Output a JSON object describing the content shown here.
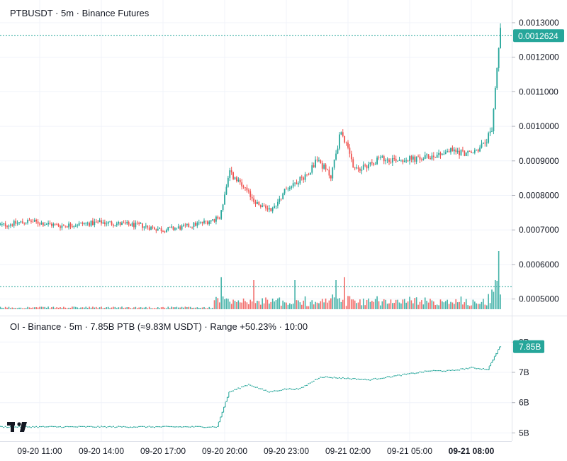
{
  "price_pane": {
    "title": "PTBUSDT · 5m · Binance Futures",
    "last_price_label": "0.0012624",
    "price_ticks": [
      "0.0013000",
      "0.0012000",
      "0.0011000",
      "0.0010000",
      "0.0009000",
      "0.0008000",
      "0.0007000",
      "0.0006000",
      "0.0005000"
    ]
  },
  "oi_pane": {
    "title": "OI - Binance · 5m · 7.85B PTB (≈9.83M USDT) · Range +50.23% · 10:00",
    "last_value_label": "7.85B",
    "ticks": [
      "8B",
      "7B",
      "6B",
      "5B"
    ]
  },
  "time_axis": {
    "ticks": [
      "09-20 11:00",
      "09-20 14:00",
      "09-20 17:00",
      "09-20 20:00",
      "09-20 23:00",
      "09-21 02:00",
      "09-21 05:00",
      "09-21 08:00"
    ],
    "bold_index": 7
  },
  "colors": {
    "up": "#26a69a",
    "down": "#ef5350",
    "oi": "#26a69a",
    "grid": "#f0f3fa",
    "text": "#131722"
  },
  "logo": {
    "text": "TV"
  },
  "chart_data": [
    {
      "type": "candlestick",
      "title": "PTBUSDT · 5m · Binance Futures",
      "x_start": "09-20 09:00",
      "interval": "5m",
      "ylim": [
        0.00045,
        0.00133
      ],
      "last_price": 0.0012624,
      "anchors_x": [
        "09-20 09:00",
        "09-20 10:30",
        "09-20 12:00",
        "09-20 14:00",
        "09-20 16:00",
        "09-20 17:00",
        "09-20 18:00",
        "09-20 19:00",
        "09-20 19:45",
        "09-20 20:15",
        "09-20 21:00",
        "09-20 21:40",
        "09-20 22:20",
        "09-20 23:00",
        "09-21 00:00",
        "09-21 00:30",
        "09-21 01:10",
        "09-21 01:40",
        "09-21 02:20",
        "09-21 03:30",
        "09-21 05:30",
        "09-21 07:00",
        "09-21 08:00",
        "09-21 08:40",
        "09-21 09:00",
        "09-21 09:25"
      ],
      "anchors_close": [
        0.000712,
        0.000725,
        0.000712,
        0.000722,
        0.000712,
        0.0007,
        0.000708,
        0.000722,
        0.000735,
        0.000865,
        0.000815,
        0.00077,
        0.00076,
        0.00082,
        0.00086,
        0.000905,
        0.000855,
        0.00099,
        0.00087,
        0.000905,
        0.000905,
        0.00093,
        0.00092,
        0.00095,
        0.00099,
        0.00129
      ],
      "volume_relative_max": 1.0,
      "volume_spikes": [
        {
          "x": "09-20 19:50",
          "relative": 0.55
        },
        {
          "x": "09-20 21:25",
          "relative": 0.5
        },
        {
          "x": "09-20 23:25",
          "relative": 0.5
        },
        {
          "x": "09-21 01:25",
          "relative": 0.5
        },
        {
          "x": "09-21 01:50",
          "relative": 0.55
        },
        {
          "x": "09-21 09:10",
          "relative": 0.5
        },
        {
          "x": "09-21 09:20",
          "relative": 1.0
        }
      ]
    },
    {
      "type": "line",
      "title": "OI - Binance · 5m · 7.85B PTB (≈9.83M USDT) · Range +50.23% · 10:00",
      "unit": "PTB",
      "ylim": [
        4.8,
        8.3
      ],
      "last_value": 7.85,
      "x": [
        "09-20 09:00",
        "09-20 14:00",
        "09-20 19:40",
        "09-20 20:15",
        "09-20 21:10",
        "09-20 22:10",
        "09-20 23:00",
        "09-20 23:40",
        "09-21 00:40",
        "09-21 02:00",
        "09-21 03:00",
        "09-21 04:30",
        "09-21 06:00",
        "09-21 07:00",
        "09-21 08:00",
        "09-21 08:50",
        "09-21 09:25"
      ],
      "y": [
        5.2,
        5.2,
        5.2,
        6.35,
        6.6,
        6.35,
        6.45,
        6.45,
        6.85,
        6.8,
        6.75,
        6.9,
        7.05,
        7.05,
        7.15,
        7.1,
        7.85
      ]
    }
  ]
}
